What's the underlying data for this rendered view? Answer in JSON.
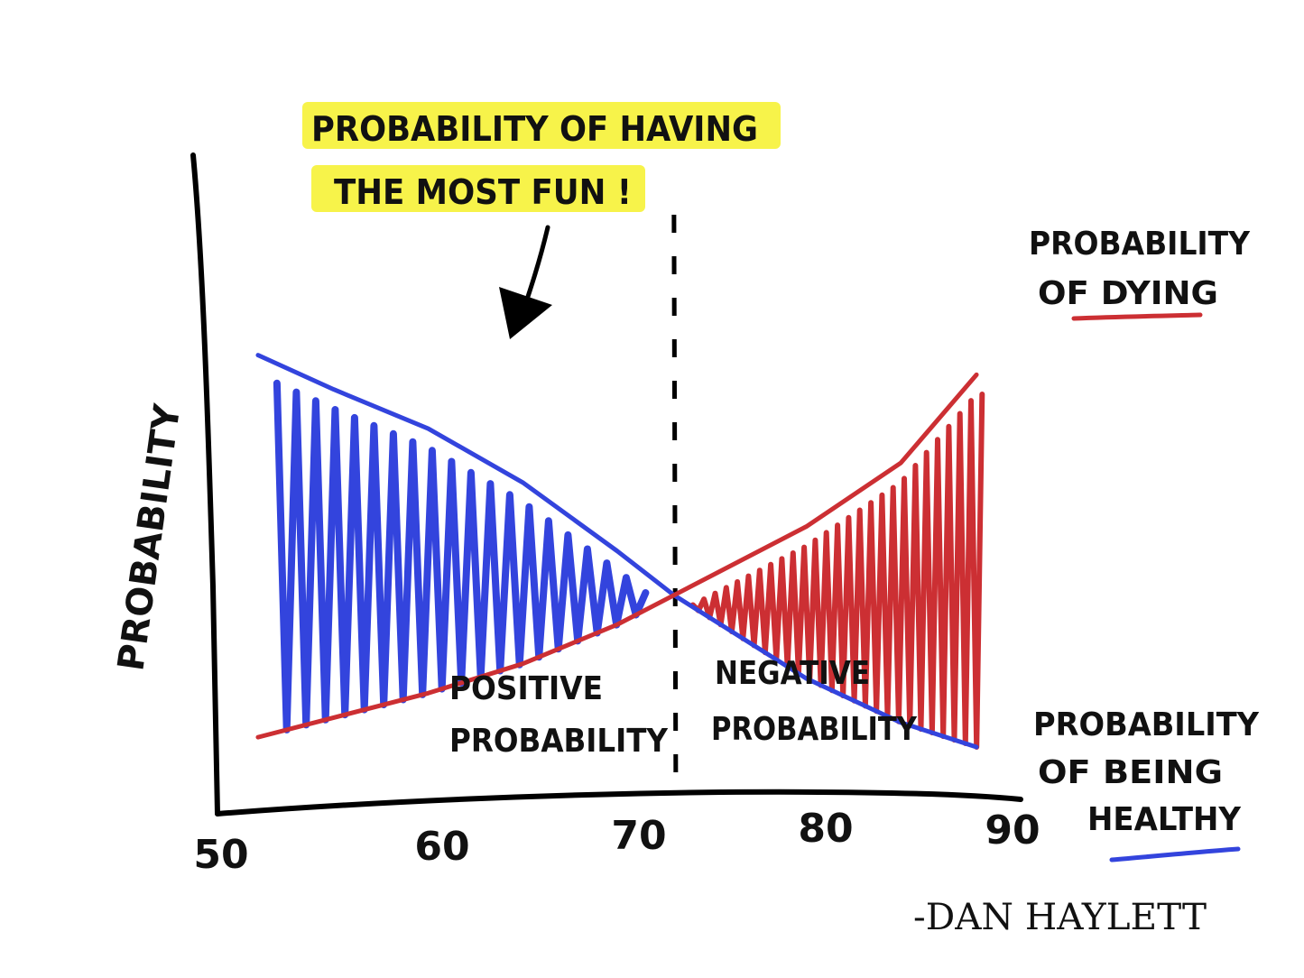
{
  "chart_data": {
    "type": "line",
    "title": "",
    "ylabel": "PROBABILITY",
    "xlabel": "",
    "x_ticks": [
      50,
      60,
      70,
      80,
      90
    ],
    "xlim": [
      50,
      90
    ],
    "ylim": [
      0,
      1
    ],
    "grid": false,
    "legend": "right",
    "crossover_x": 73,
    "series": [
      {
        "name": "PROBABILITY OF BEING HEALTHY",
        "color": "#3344dd",
        "x": [
          51,
          55,
          60,
          65,
          70,
          73,
          80,
          85,
          89
        ],
        "y": [
          0.8,
          0.73,
          0.65,
          0.54,
          0.4,
          0.31,
          0.14,
          0.05,
          0.0
        ]
      },
      {
        "name": "PROBABILITY OF DYING",
        "color": "#cc2f33",
        "x": [
          51,
          55,
          60,
          65,
          70,
          73,
          80,
          85,
          89
        ],
        "y": [
          0.02,
          0.06,
          0.11,
          0.17,
          0.25,
          0.31,
          0.45,
          0.58,
          0.76
        ]
      }
    ],
    "annotations": {
      "callout_line1": "PROBABILITY OF HAVING",
      "callout_line2": "THE MOST FUN !",
      "left_region_line1": "POSITIVE",
      "left_region_line2": "PROBABILITY",
      "right_region_line1": "NEGATIVE",
      "right_region_line2": "PROBABILITY",
      "dying_line1": "PROBABILITY",
      "dying_line2": "OF DYING",
      "healthy_line1": "PROBABILITY",
      "healthy_line2": "OF BEING",
      "healthy_line3": "HEALTHY"
    },
    "highlight_color": "#f7f34a"
  },
  "signature": "-DAN HAYLETT"
}
